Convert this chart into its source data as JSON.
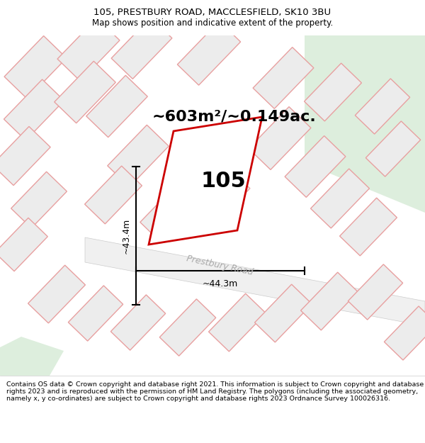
{
  "title_line1": "105, PRESTBURY ROAD, MACCLESFIELD, SK10 3BU",
  "title_line2": "Map shows position and indicative extent of the property.",
  "area_text": "~603m²/~0.149ac.",
  "label_105": "105",
  "dim_vertical": "~43.4m",
  "dim_horizontal": "~44.3m",
  "road_label": "Prestbury Road",
  "footer_text": "Contains OS data © Crown copyright and database right 2021. This information is subject to Crown copyright and database rights 2023 and is reproduced with the permission of HM Land Registry. The polygons (including the associated geometry, namely x, y co-ordinates) are subject to Crown copyright and database rights 2023 Ordnance Survey 100026316.",
  "map_bg": "#ffffff",
  "pink_outline": "#e8a0a0",
  "red_outline": "#cc0000",
  "building_fill": "#ececec",
  "green_area_color": "#ddeedd",
  "title_fontsize": 9.5,
  "subtitle_fontsize": 8.5,
  "area_fontsize": 16,
  "label_fontsize": 22,
  "dim_fontsize": 9,
  "footer_fontsize": 6.8,
  "road_label_color": "#aaaaaa",
  "road_label_fontsize": 9
}
